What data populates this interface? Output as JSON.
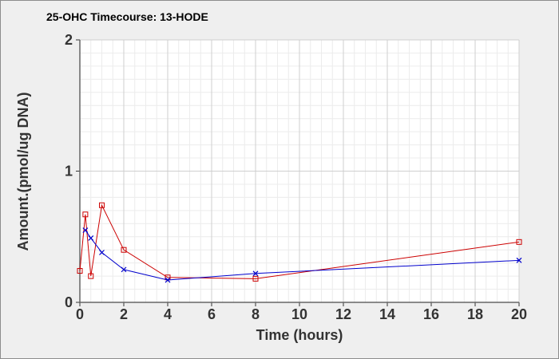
{
  "chart_data": {
    "type": "line",
    "title": "25-OHC Timecourse: 13-HODE",
    "xlabel": "Time (hours)",
    "ylabel": "Amount.(pmol/ug DNA)",
    "xlim": [
      0,
      20
    ],
    "ylim": [
      0,
      2
    ],
    "x_ticks": [
      "0",
      "2",
      "4",
      "6",
      "8",
      "10",
      "12",
      "14",
      "16",
      "18",
      "20"
    ],
    "y_ticks": [
      "0",
      "1",
      "2"
    ],
    "grid": true,
    "colors": {
      "red": "#cc0000",
      "blue": "#0000cc"
    },
    "series": [
      {
        "marker": "square",
        "color": "#cc0000",
        "x": [
          0,
          0.25,
          0.5,
          1,
          2,
          4,
          8,
          20
        ],
        "y": [
          0.24,
          0.67,
          0.2,
          0.74,
          0.4,
          0.19,
          0.18,
          0.46
        ]
      },
      {
        "marker": "x",
        "color": "#0000cc",
        "x": [
          0.25,
          0.5,
          1,
          2,
          4,
          8,
          20
        ],
        "y": [
          0.55,
          0.49,
          0.38,
          0.25,
          0.17,
          0.22,
          0.32
        ]
      }
    ]
  }
}
